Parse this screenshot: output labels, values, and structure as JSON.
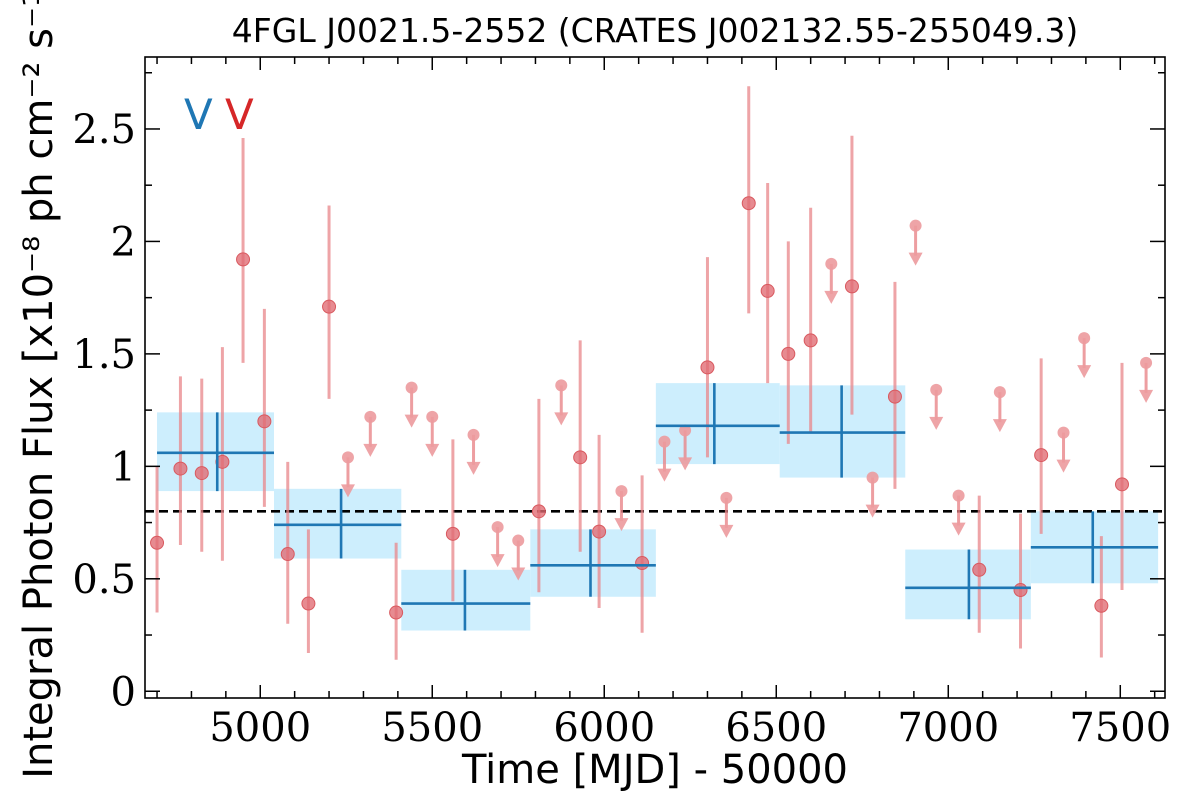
{
  "chart_data": {
    "type": "scatter",
    "title": "4FGL J0021.5-2552 (CRATES J002132.55-255049.3)",
    "xlabel": "Time [MJD] - 50000",
    "ylabel": "Integral Photon Flux [x10⁻⁸ ph cm⁻² s⁻¹]",
    "xlim": [
      4665,
      7630
    ],
    "ylim": [
      -0.03,
      2.82
    ],
    "x_ticks": [
      5000,
      5500,
      6000,
      6500,
      7000,
      7500
    ],
    "y_ticks": [
      0,
      0.5,
      1,
      1.5,
      2,
      2.5
    ],
    "y_tick_labels": [
      "0",
      "0.5",
      "1",
      "1.5",
      "2",
      "2.5"
    ],
    "grid": false,
    "reference_line": {
      "y": 0.8,
      "style": "dashed",
      "color": "#000000"
    },
    "markers": [
      {
        "label": "V",
        "color": "#1f77b4"
      },
      {
        "label": "V",
        "color": "#d62728"
      }
    ],
    "series": [
      {
        "kind": "detections",
        "color": "#e8868a",
        "points": [
          {
            "x": 4700,
            "y": 0.66,
            "lo": 0.35,
            "hi": 1.0
          },
          {
            "x": 4768,
            "y": 0.99,
            "lo": 0.65,
            "hi": 1.4
          },
          {
            "x": 4830,
            "y": 0.97,
            "lo": 0.62,
            "hi": 1.39
          },
          {
            "x": 4890,
            "y": 1.02,
            "lo": 0.58,
            "hi": 1.53
          },
          {
            "x": 4950,
            "y": 1.92,
            "lo": 1.46,
            "hi": 2.46
          },
          {
            "x": 5012,
            "y": 1.2,
            "lo": 0.82,
            "hi": 1.7
          },
          {
            "x": 5080,
            "y": 0.61,
            "lo": 0.3,
            "hi": 1.02
          },
          {
            "x": 5140,
            "y": 0.39,
            "lo": 0.17,
            "hi": 0.72
          },
          {
            "x": 5200,
            "y": 1.71,
            "lo": 1.3,
            "hi": 2.16
          },
          {
            "x": 5395,
            "y": 0.35,
            "lo": 0.14,
            "hi": 0.66
          },
          {
            "x": 5560,
            "y": 0.7,
            "lo": 0.4,
            "hi": 1.12
          },
          {
            "x": 5810,
            "y": 0.8,
            "lo": 0.44,
            "hi": 1.3
          },
          {
            "x": 5930,
            "y": 1.04,
            "lo": 0.62,
            "hi": 1.56
          },
          {
            "x": 5985,
            "y": 0.71,
            "lo": 0.37,
            "hi": 1.14
          },
          {
            "x": 6110,
            "y": 0.57,
            "lo": 0.26,
            "hi": 0.96
          },
          {
            "x": 6300,
            "y": 1.44,
            "lo": 1.04,
            "hi": 1.93
          },
          {
            "x": 6420,
            "y": 2.17,
            "lo": 1.68,
            "hi": 2.69
          },
          {
            "x": 6475,
            "y": 1.78,
            "lo": 1.37,
            "hi": 2.26
          },
          {
            "x": 6535,
            "y": 1.5,
            "lo": 1.1,
            "hi": 2.0
          },
          {
            "x": 6600,
            "y": 1.56,
            "lo": 1.15,
            "hi": 2.15
          },
          {
            "x": 6720,
            "y": 1.8,
            "lo": 1.23,
            "hi": 2.47
          },
          {
            "x": 6845,
            "y": 1.31,
            "lo": 0.9,
            "hi": 1.82
          },
          {
            "x": 7090,
            "y": 0.54,
            "lo": 0.26,
            "hi": 0.87
          },
          {
            "x": 7210,
            "y": 0.45,
            "lo": 0.19,
            "hi": 0.79
          },
          {
            "x": 7270,
            "y": 1.05,
            "lo": 0.7,
            "hi": 1.48
          },
          {
            "x": 7445,
            "y": 0.38,
            "lo": 0.15,
            "hi": 0.69
          },
          {
            "x": 7505,
            "y": 0.92,
            "lo": 0.45,
            "hi": 1.46
          }
        ]
      },
      {
        "kind": "upper_limits",
        "color": "#e8868a",
        "points": [
          {
            "x": 5255,
            "y": 1.04
          },
          {
            "x": 5320,
            "y": 1.22
          },
          {
            "x": 5440,
            "y": 1.35
          },
          {
            "x": 5500,
            "y": 1.22
          },
          {
            "x": 5620,
            "y": 1.14
          },
          {
            "x": 5690,
            "y": 0.73
          },
          {
            "x": 5750,
            "y": 0.67
          },
          {
            "x": 5875,
            "y": 1.36
          },
          {
            "x": 6050,
            "y": 0.89
          },
          {
            "x": 6175,
            "y": 1.11
          },
          {
            "x": 6235,
            "y": 1.16
          },
          {
            "x": 6355,
            "y": 0.86
          },
          {
            "x": 6660,
            "y": 1.9
          },
          {
            "x": 6780,
            "y": 0.95
          },
          {
            "x": 6905,
            "y": 2.07
          },
          {
            "x": 6965,
            "y": 1.34
          },
          {
            "x": 7030,
            "y": 0.87
          },
          {
            "x": 7150,
            "y": 1.33
          },
          {
            "x": 7335,
            "y": 1.15
          },
          {
            "x": 7395,
            "y": 1.57
          },
          {
            "x": 7575,
            "y": 1.46
          }
        ]
      },
      {
        "kind": "bins",
        "color": "#1f77b4",
        "band_color": "#cdeefd",
        "points": [
          {
            "x0": 4700,
            "x1": 5040,
            "xc": 4875,
            "y": 1.06,
            "lo": 0.89,
            "hi": 1.24
          },
          {
            "x0": 5040,
            "x1": 5410,
            "xc": 5235,
            "y": 0.74,
            "lo": 0.59,
            "hi": 0.9
          },
          {
            "x0": 5410,
            "x1": 5785,
            "xc": 5595,
            "y": 0.39,
            "lo": 0.27,
            "hi": 0.54
          },
          {
            "x0": 5785,
            "x1": 6150,
            "xc": 5960,
            "y": 0.56,
            "lo": 0.42,
            "hi": 0.72
          },
          {
            "x0": 6150,
            "x1": 6510,
            "xc": 6320,
            "y": 1.18,
            "lo": 1.01,
            "hi": 1.37
          },
          {
            "x0": 6510,
            "x1": 6875,
            "xc": 6690,
            "y": 1.15,
            "lo": 0.95,
            "hi": 1.36
          },
          {
            "x0": 6875,
            "x1": 7240,
            "xc": 7060,
            "y": 0.46,
            "lo": 0.32,
            "hi": 0.63
          },
          {
            "x0": 7240,
            "x1": 7610,
            "xc": 7420,
            "y": 0.64,
            "lo": 0.48,
            "hi": 0.8
          }
        ]
      }
    ]
  }
}
